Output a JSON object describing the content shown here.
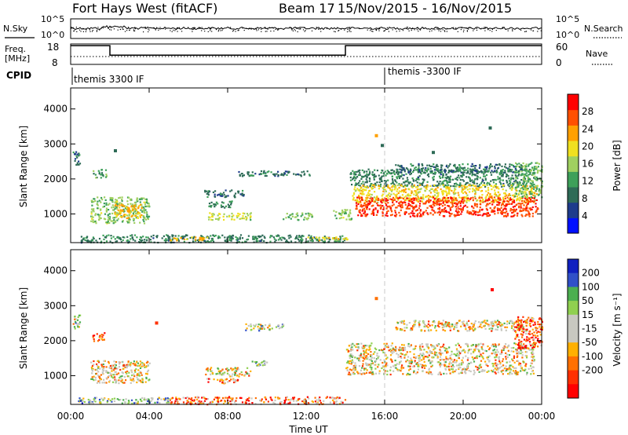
{
  "header": {
    "station": "Fort Hays West (fitACF)",
    "beam": "Beam 17",
    "date_range": "15/Nov/2015 - 16/Nov/2015"
  },
  "labels": {
    "nsky": "N.Sky",
    "nsearch": "N.Search",
    "freq_line1": "Freq.",
    "freq_line2": "[MHz]",
    "nave": "Nave",
    "cpid": "CPID"
  },
  "cpid_segments": [
    {
      "label": "themis 3300 IF",
      "start_hour": 0
    },
    {
      "label": "themis -3300 IF",
      "start_hour": 16
    }
  ],
  "noise_panel": {
    "left_ticks": [
      "10^5",
      "10^0"
    ],
    "right_ticks": [
      "10^5",
      "10^0"
    ]
  },
  "freq_panel": {
    "left_ticks": [
      "18",
      "8"
    ],
    "right_ticks": [
      "60",
      "0"
    ],
    "steps": [
      {
        "from_hour": 0,
        "to_hour": 2.0,
        "freq_level": 0.92
      },
      {
        "from_hour": 2.0,
        "to_hour": 14.0,
        "freq_level": 0.45
      },
      {
        "from_hour": 14.0,
        "to_hour": 24,
        "freq_level": 0.92
      }
    ]
  },
  "colors": {
    "power": [
      "#0010ff",
      "#1e3c8c",
      "#2e6b57",
      "#3ea05a",
      "#a0d060",
      "#f0e020",
      "#ffa000",
      "#ff5000",
      "#ff0000"
    ],
    "velocity": [
      "#1020c0",
      "#3050c8",
      "#4caf50",
      "#90d050",
      "#c8c8c0",
      "#c8c8c0",
      "#ffb000",
      "#ff7000",
      "#ff3000",
      "#ff0000"
    ],
    "ground_scatter": "#c0c0bc"
  },
  "chart_data": [
    {
      "type": "heatmap",
      "name": "power",
      "ylabel": "Slant Range [km]",
      "xlabel": "Time UT",
      "ylim": [
        180,
        4600
      ],
      "y_ticks": [
        1000,
        2000,
        3000,
        4000
      ],
      "x_ticks": [
        "00:00",
        "04:00",
        "08:00",
        "12:00",
        "16:00",
        "20:00",
        "00:00"
      ],
      "colorbar_label": "Power [dB]",
      "colorbar_ticks": [
        4,
        8,
        12,
        16,
        20,
        24,
        28
      ],
      "colorbar_range": [
        0,
        32
      ],
      "regions": [
        {
          "t0": 0.1,
          "t1": 0.45,
          "r0": 2400,
          "r1": 2800,
          "level": 9
        },
        {
          "t0": 1.1,
          "t1": 1.8,
          "r0": 2050,
          "r1": 2300,
          "level": 12
        },
        {
          "t0": 1.0,
          "t1": 4.0,
          "r0": 750,
          "r1": 1500,
          "level": 15
        },
        {
          "t0": 2.2,
          "t1": 3.6,
          "r0": 900,
          "r1": 1300,
          "level": 22
        },
        {
          "t0": 6.8,
          "t1": 8.8,
          "r0": 1500,
          "r1": 1700,
          "level": 9
        },
        {
          "t0": 7.0,
          "t1": 8.2,
          "r0": 1200,
          "r1": 1400,
          "level": 11
        },
        {
          "t0": 6.9,
          "t1": 9.2,
          "r0": 850,
          "r1": 1050,
          "level": 17
        },
        {
          "t0": 10.8,
          "t1": 12.3,
          "r0": 850,
          "r1": 1050,
          "level": 14
        },
        {
          "t0": 13.3,
          "t1": 14.3,
          "r0": 850,
          "r1": 1150,
          "level": 15
        },
        {
          "t0": 14.2,
          "t1": 23.6,
          "r0": 1800,
          "r1": 2300,
          "level": 10
        },
        {
          "t0": 14.3,
          "t1": 23.8,
          "r0": 1350,
          "r1": 1850,
          "level": 20
        },
        {
          "t0": 14.5,
          "t1": 23.8,
          "r0": 950,
          "r1": 1500,
          "level": 28
        },
        {
          "t0": 22.6,
          "t1": 24,
          "r0": 1500,
          "r1": 2500,
          "level": 14
        },
        {
          "t0": 16.5,
          "t1": 23.0,
          "r0": 2200,
          "r1": 2450,
          "level": 9
        },
        {
          "t0": 8.5,
          "t1": 12.2,
          "r0": 2100,
          "r1": 2250,
          "level": 9
        },
        {
          "t0": 0.5,
          "t1": 14,
          "r0": 200,
          "r1": 420,
          "level": 10
        },
        {
          "t0": 5.0,
          "t1": 7.0,
          "r0": 260,
          "r1": 360,
          "level": 22
        },
        {
          "t0": 12.0,
          "t1": 14.2,
          "r0": 260,
          "r1": 360,
          "level": 20
        }
      ],
      "points": [
        {
          "t": 21.3,
          "r": 3500,
          "level": 10
        },
        {
          "t": 15.5,
          "r": 3280,
          "level": 24
        },
        {
          "t": 18.4,
          "r": 2800,
          "level": 8
        },
        {
          "t": 2.2,
          "r": 2850,
          "level": 8
        },
        {
          "t": 15.8,
          "r": 3000,
          "level": 8
        }
      ]
    },
    {
      "type": "heatmap",
      "name": "velocity",
      "ylabel": "Slant Range [km]",
      "xlabel": "Time UT",
      "ylim": [
        180,
        4600
      ],
      "y_ticks": [
        1000,
        2000,
        3000,
        4000
      ],
      "x_ticks": [
        "00:00",
        "04:00",
        "08:00",
        "12:00",
        "16:00",
        "20:00",
        "00:00"
      ],
      "colorbar_label": "Velocity [m s⁻¹]",
      "colorbar_ticks": [
        "200",
        "100",
        "50",
        "15",
        "-15",
        "-50",
        "-100",
        "-200"
      ],
      "regions": [
        {
          "t0": 0.1,
          "t1": 0.45,
          "r0": 2350,
          "r1": 2750,
          "level": 4
        },
        {
          "t0": 1.1,
          "t1": 1.7,
          "r0": 2000,
          "r1": 2250,
          "level": 8
        },
        {
          "t0": 1.0,
          "t1": 4.0,
          "r0": 800,
          "r1": 1450,
          "level": 5
        },
        {
          "t0": 6.8,
          "t1": 9.2,
          "r0": 1000,
          "r1": 1250,
          "level": 5
        },
        {
          "t0": 9.2,
          "t1": 10.0,
          "r0": 1300,
          "r1": 1450,
          "level": 3
        },
        {
          "t0": 6.9,
          "t1": 8.5,
          "r0": 800,
          "r1": 950,
          "level": 6
        },
        {
          "t0": 8.8,
          "t1": 10.8,
          "r0": 2300,
          "r1": 2500,
          "level": 4
        },
        {
          "t0": 14.0,
          "t1": 23.6,
          "r0": 1050,
          "r1": 1950,
          "level": 5
        },
        {
          "t0": 16.5,
          "t1": 23.2,
          "r0": 2300,
          "r1": 2600,
          "level": 5
        },
        {
          "t0": 22.6,
          "t1": 24,
          "r0": 1800,
          "r1": 2700,
          "level": 8
        },
        {
          "t0": 5.0,
          "t1": 14,
          "r0": 200,
          "r1": 420,
          "level": 7
        },
        {
          "t0": 0.3,
          "t1": 5.0,
          "r0": 220,
          "r1": 400,
          "level": 3
        }
      ],
      "points": [
        {
          "t": 21.4,
          "r": 3500,
          "level": 9
        },
        {
          "t": 15.5,
          "r": 3250,
          "level": 7
        },
        {
          "t": 4.3,
          "r": 2550,
          "level": 8
        }
      ]
    }
  ]
}
